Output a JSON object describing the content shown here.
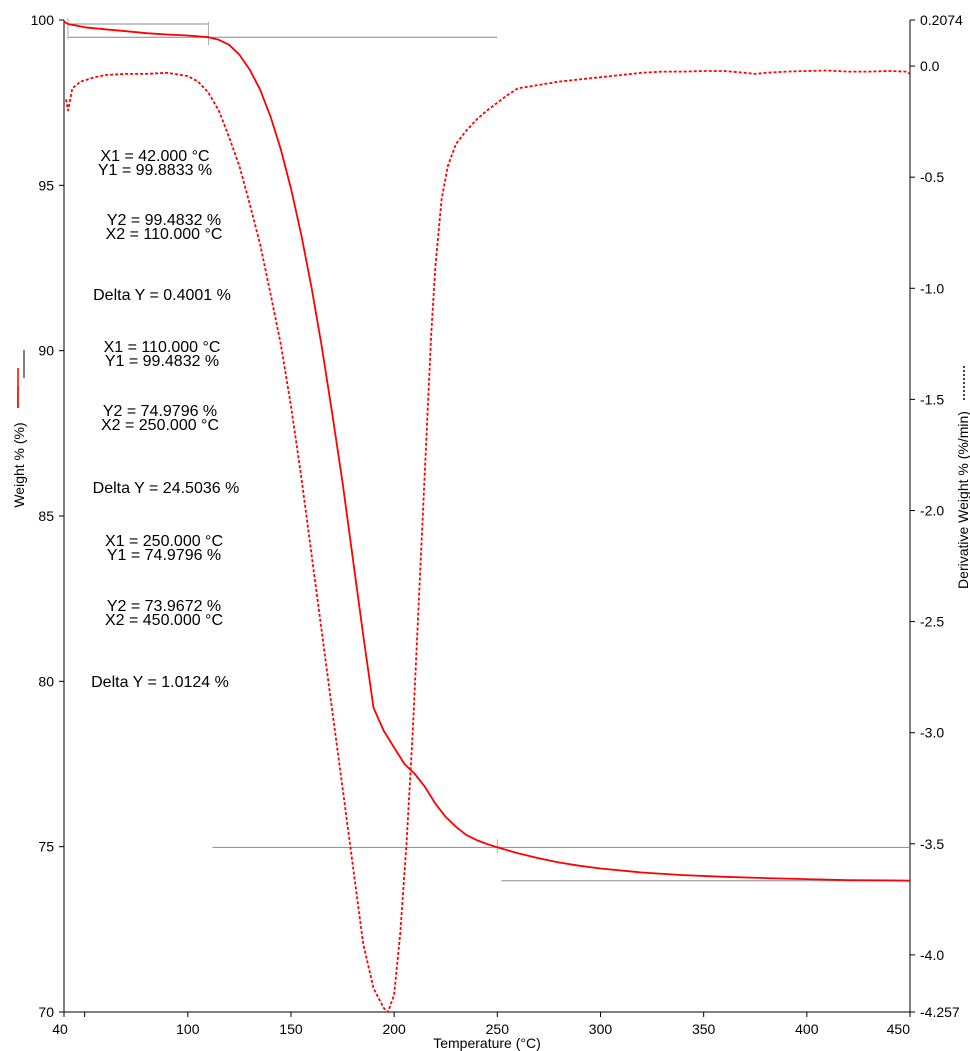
{
  "chart_data": {
    "type": "line",
    "xlabel": "Temperature (°C)",
    "ylabel_left": "Weight % (%)",
    "ylabel_right": "Derivative Weight % (%/min)",
    "xlim": [
      40,
      450
    ],
    "ylim_left": [
      70,
      100
    ],
    "ylim_right": [
      -4.257,
      0.2074
    ],
    "x_ticks": [
      "40",
      "100",
      "150",
      "200",
      "250",
      "300",
      "350",
      "400",
      "450"
    ],
    "y_left_ticks": [
      "70",
      "75",
      "80",
      "85",
      "90",
      "95",
      "100"
    ],
    "y_right_ticks": [
      "0.2074",
      "0.0",
      "-0.5",
      "-1.0",
      "-1.5",
      "-2.0",
      "-2.5",
      "-3.0",
      "-3.5",
      "-4.0",
      "-4.257"
    ],
    "grid": false,
    "series": [
      {
        "name": "Weight %",
        "axis": "left",
        "color": "#ff0000",
        "style": "solid",
        "points": [
          [
            40,
            99.95
          ],
          [
            42,
            99.88
          ],
          [
            50,
            99.78
          ],
          [
            60,
            99.72
          ],
          [
            70,
            99.66
          ],
          [
            80,
            99.6
          ],
          [
            90,
            99.56
          ],
          [
            100,
            99.53
          ],
          [
            110,
            99.48
          ],
          [
            115,
            99.4
          ],
          [
            120,
            99.25
          ],
          [
            125,
            98.95
          ],
          [
            130,
            98.5
          ],
          [
            135,
            97.9
          ],
          [
            140,
            97.1
          ],
          [
            145,
            96.1
          ],
          [
            150,
            94.9
          ],
          [
            155,
            93.5
          ],
          [
            160,
            91.9
          ],
          [
            165,
            90.1
          ],
          [
            170,
            88.1
          ],
          [
            175,
            86.0
          ],
          [
            180,
            83.7
          ],
          [
            185,
            81.4
          ],
          [
            190,
            79.2
          ],
          [
            195,
            78.5
          ],
          [
            200,
            78.0
          ],
          [
            205,
            77.5
          ],
          [
            210,
            77.2
          ],
          [
            215,
            76.8
          ],
          [
            220,
            76.3
          ],
          [
            225,
            75.9
          ],
          [
            230,
            75.6
          ],
          [
            235,
            75.35
          ],
          [
            240,
            75.2
          ],
          [
            245,
            75.08
          ],
          [
            250,
            74.98
          ],
          [
            260,
            74.8
          ],
          [
            270,
            74.65
          ],
          [
            280,
            74.52
          ],
          [
            290,
            74.42
          ],
          [
            300,
            74.34
          ],
          [
            320,
            74.22
          ],
          [
            340,
            74.14
          ],
          [
            360,
            74.09
          ],
          [
            380,
            74.05
          ],
          [
            400,
            74.02
          ],
          [
            420,
            73.99
          ],
          [
            440,
            73.98
          ],
          [
            450,
            73.97
          ]
        ]
      },
      {
        "name": "Derivative Weight %",
        "axis": "right",
        "color": "#ff0000",
        "style": "dashed",
        "points": [
          [
            41,
            -0.15
          ],
          [
            42,
            -0.2
          ],
          [
            44,
            -0.1
          ],
          [
            48,
            -0.07
          ],
          [
            55,
            -0.05
          ],
          [
            60,
            -0.04
          ],
          [
            70,
            -0.035
          ],
          [
            80,
            -0.035
          ],
          [
            90,
            -0.03
          ],
          [
            100,
            -0.045
          ],
          [
            105,
            -0.07
          ],
          [
            110,
            -0.12
          ],
          [
            115,
            -0.2
          ],
          [
            120,
            -0.32
          ],
          [
            125,
            -0.45
          ],
          [
            130,
            -0.62
          ],
          [
            135,
            -0.8
          ],
          [
            140,
            -1.02
          ],
          [
            145,
            -1.25
          ],
          [
            150,
            -1.53
          ],
          [
            155,
            -1.85
          ],
          [
            160,
            -2.2
          ],
          [
            165,
            -2.55
          ],
          [
            170,
            -2.9
          ],
          [
            175,
            -3.25
          ],
          [
            180,
            -3.6
          ],
          [
            185,
            -3.95
          ],
          [
            190,
            -4.15
          ],
          [
            195,
            -4.24
          ],
          [
            197,
            -4.257
          ],
          [
            200,
            -4.18
          ],
          [
            203,
            -3.9
          ],
          [
            206,
            -3.5
          ],
          [
            209,
            -3.0
          ],
          [
            212,
            -2.4
          ],
          [
            215,
            -1.8
          ],
          [
            218,
            -1.2
          ],
          [
            220,
            -0.9
          ],
          [
            223,
            -0.6
          ],
          [
            226,
            -0.45
          ],
          [
            230,
            -0.35
          ],
          [
            235,
            -0.29
          ],
          [
            240,
            -0.24
          ],
          [
            245,
            -0.2
          ],
          [
            250,
            -0.165
          ],
          [
            255,
            -0.13
          ],
          [
            260,
            -0.1
          ],
          [
            270,
            -0.085
          ],
          [
            280,
            -0.07
          ],
          [
            290,
            -0.06
          ],
          [
            300,
            -0.05
          ],
          [
            310,
            -0.04
          ],
          [
            320,
            -0.03
          ],
          [
            330,
            -0.025
          ],
          [
            340,
            -0.025
          ],
          [
            350,
            -0.022
          ],
          [
            360,
            -0.022
          ],
          [
            370,
            -0.03
          ],
          [
            375,
            -0.035
          ],
          [
            380,
            -0.03
          ],
          [
            390,
            -0.025
          ],
          [
            400,
            -0.022
          ],
          [
            410,
            -0.02
          ],
          [
            420,
            -0.025
          ],
          [
            430,
            -0.025
          ],
          [
            440,
            -0.022
          ],
          [
            448,
            -0.025
          ],
          [
            450,
            -0.035
          ]
        ]
      }
    ],
    "baselines": [
      {
        "x1": 40,
        "x2": 110,
        "y": 99.88
      },
      {
        "x1": 40,
        "x2": 250,
        "y": 99.48
      },
      {
        "x1": 110,
        "x2": 450,
        "y": 74.98
      },
      {
        "x1": 250,
        "x2": 450,
        "y": 73.97
      }
    ],
    "annotations": [
      {
        "lines": [
          "X1 = 42.000 °C",
          "Y1 = 99.8833 %"
        ]
      },
      {
        "lines": [
          "Y2 = 99.4832 %",
          "X2 = 110.000 °C"
        ]
      },
      {
        "lines": [
          "Delta Y = 0.4001 %"
        ]
      },
      {
        "lines": [
          "X1 = 110.000 °C",
          "Y1 = 99.4832 %"
        ]
      },
      {
        "lines": [
          "Y2 = 74.9796 %",
          "X2 = 250.000 °C"
        ]
      },
      {
        "lines": [
          "Delta Y = 24.5036 %"
        ]
      },
      {
        "lines": [
          "X1 = 250.000 °C",
          "Y1 = 74.9796 %"
        ]
      },
      {
        "lines": [
          "Y2 = 73.9672 %",
          "X2 = 450.000 °C"
        ]
      },
      {
        "lines": [
          "Delta Y = 1.0124 %"
        ]
      }
    ]
  }
}
